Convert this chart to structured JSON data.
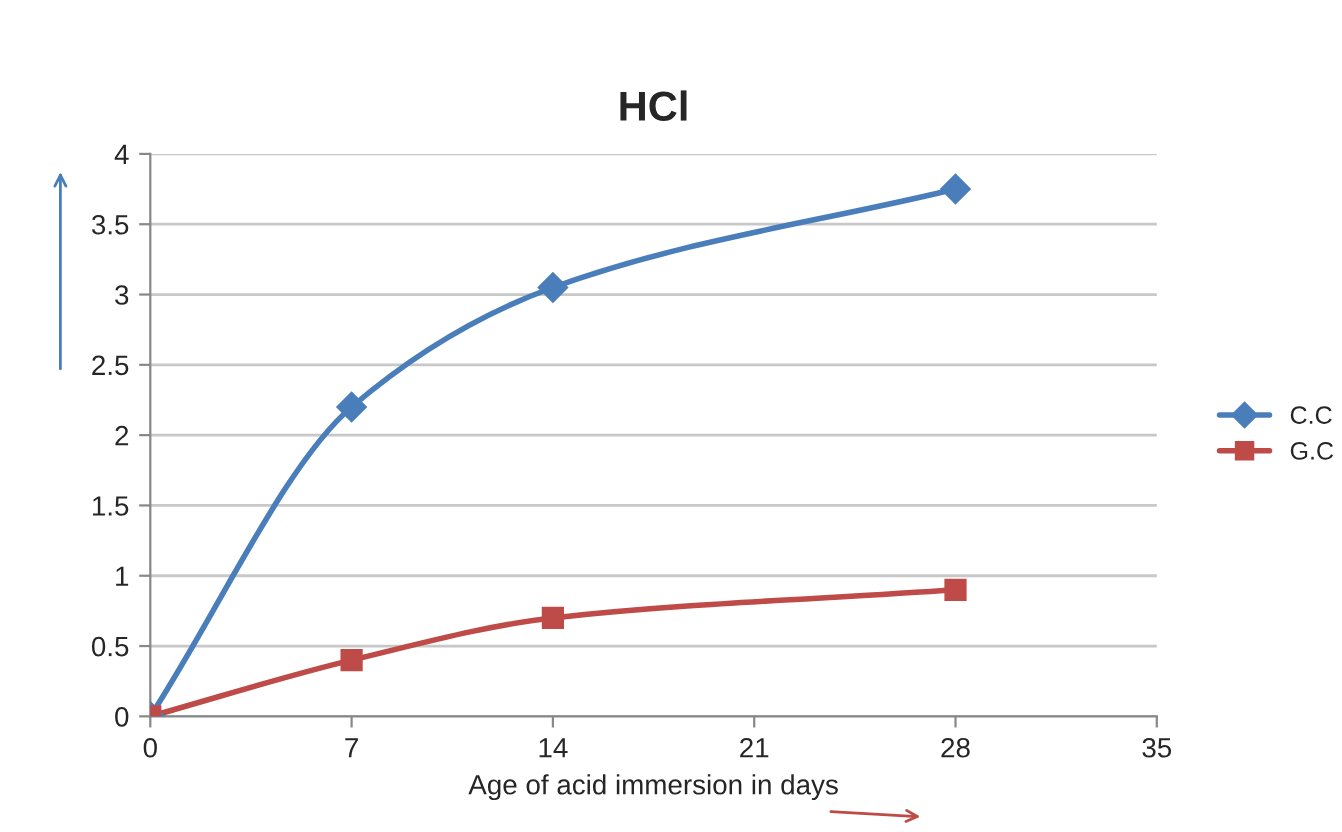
{
  "chart_data": {
    "type": "line",
    "title": "HCl",
    "xlabel": "Age of acid immersion in days",
    "x": [
      0,
      7,
      14,
      28
    ],
    "series": [
      {
        "name": "C.C",
        "color": "#4a7ebb",
        "values": [
          0,
          2.2,
          3.05,
          3.75
        ],
        "marker": "diamond"
      },
      {
        "name": "G.C",
        "color": "#be4b48",
        "values": [
          0,
          0.4,
          0.7,
          0.9
        ],
        "marker": "square"
      }
    ],
    "xlim": [
      0,
      35
    ],
    "xticks": [
      0,
      7,
      14,
      21,
      28,
      35
    ],
    "ylim": [
      0,
      4
    ],
    "yticks": [
      0,
      0.5,
      1,
      1.5,
      2,
      2.5,
      3,
      3.5,
      4
    ],
    "grid": "y",
    "legend": "right",
    "line_style": "solid"
  }
}
